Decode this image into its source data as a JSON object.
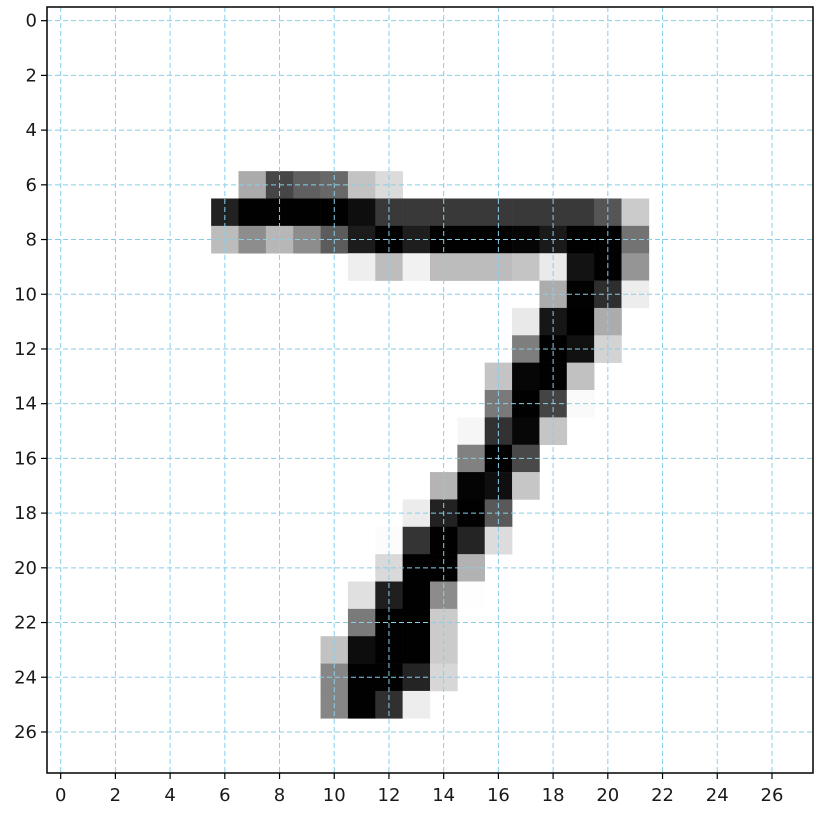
{
  "chart_data": {
    "type": "heatmap",
    "title": "",
    "xlabel": "",
    "ylabel": "",
    "rows": 28,
    "cols": 28,
    "xlim": [
      -0.5,
      27.5
    ],
    "ylim": [
      27.5,
      -0.5
    ],
    "y_inverted": true,
    "colormap": "gray_r",
    "value_range": [
      0,
      255
    ],
    "xticks": [
      0,
      2,
      4,
      6,
      8,
      10,
      12,
      14,
      16,
      18,
      20,
      22,
      24,
      26
    ],
    "yticks": [
      0,
      2,
      4,
      6,
      8,
      10,
      12,
      14,
      16,
      18,
      20,
      22,
      24,
      26
    ],
    "xtick_labels": [
      "0",
      "2",
      "4",
      "6",
      "8",
      "10",
      "12",
      "14",
      "16",
      "18",
      "20",
      "22",
      "24",
      "26"
    ],
    "ytick_labels": [
      "0",
      "2",
      "4",
      "6",
      "8",
      "10",
      "12",
      "14",
      "16",
      "18",
      "20",
      "22",
      "24",
      "26"
    ],
    "grid": {
      "on": true,
      "style": "dashed",
      "color": "#87ceeb",
      "positions": [
        0,
        2,
        4,
        6,
        8,
        10,
        12,
        14,
        16,
        18,
        20,
        22,
        24,
        26
      ]
    },
    "cells": [
      [
        6,
        7,
        84
      ],
      [
        6,
        8,
        185
      ],
      [
        6,
        9,
        159
      ],
      [
        6,
        10,
        151
      ],
      [
        6,
        11,
        60
      ],
      [
        6,
        12,
        36
      ],
      [
        7,
        6,
        222
      ],
      [
        7,
        7,
        254
      ],
      [
        7,
        8,
        254
      ],
      [
        7,
        9,
        254
      ],
      [
        7,
        10,
        254
      ],
      [
        7,
        11,
        241
      ],
      [
        7,
        12,
        198
      ],
      [
        7,
        13,
        198
      ],
      [
        7,
        14,
        198
      ],
      [
        7,
        15,
        198
      ],
      [
        7,
        16,
        198
      ],
      [
        7,
        17,
        198
      ],
      [
        7,
        18,
        198
      ],
      [
        7,
        19,
        198
      ],
      [
        7,
        20,
        170
      ],
      [
        7,
        21,
        52
      ],
      [
        8,
        6,
        67
      ],
      [
        8,
        7,
        114
      ],
      [
        8,
        8,
        72
      ],
      [
        8,
        9,
        114
      ],
      [
        8,
        10,
        163
      ],
      [
        8,
        11,
        227
      ],
      [
        8,
        12,
        254
      ],
      [
        8,
        13,
        225
      ],
      [
        8,
        14,
        254
      ],
      [
        8,
        15,
        254
      ],
      [
        8,
        16,
        254
      ],
      [
        8,
        17,
        250
      ],
      [
        8,
        18,
        229
      ],
      [
        8,
        19,
        254
      ],
      [
        8,
        20,
        254
      ],
      [
        8,
        21,
        140
      ],
      [
        9,
        11,
        17
      ],
      [
        9,
        12,
        66
      ],
      [
        9,
        13,
        14
      ],
      [
        9,
        14,
        67
      ],
      [
        9,
        15,
        67
      ],
      [
        9,
        16,
        67
      ],
      [
        9,
        17,
        59
      ],
      [
        9,
        18,
        21
      ],
      [
        9,
        19,
        236
      ],
      [
        9,
        20,
        254
      ],
      [
        9,
        21,
        106
      ],
      [
        10,
        18,
        83
      ],
      [
        10,
        19,
        253
      ],
      [
        10,
        20,
        209
      ],
      [
        10,
        21,
        18
      ],
      [
        11,
        17,
        22
      ],
      [
        11,
        18,
        233
      ],
      [
        11,
        19,
        255
      ],
      [
        11,
        20,
        83
      ],
      [
        12,
        17,
        129
      ],
      [
        12,
        18,
        254
      ],
      [
        12,
        19,
        238
      ],
      [
        12,
        20,
        44
      ],
      [
        13,
        16,
        59
      ],
      [
        13,
        17,
        249
      ],
      [
        13,
        18,
        254
      ],
      [
        13,
        19,
        62
      ],
      [
        14,
        16,
        133
      ],
      [
        14,
        17,
        254
      ],
      [
        14,
        18,
        187
      ],
      [
        14,
        19,
        5
      ],
      [
        15,
        15,
        9
      ],
      [
        15,
        16,
        205
      ],
      [
        15,
        17,
        248
      ],
      [
        15,
        18,
        58
      ],
      [
        16,
        15,
        126
      ],
      [
        16,
        16,
        254
      ],
      [
        16,
        17,
        182
      ],
      [
        17,
        14,
        75
      ],
      [
        17,
        15,
        251
      ],
      [
        17,
        16,
        240
      ],
      [
        17,
        17,
        57
      ],
      [
        18,
        13,
        19
      ],
      [
        18,
        14,
        221
      ],
      [
        18,
        15,
        254
      ],
      [
        18,
        16,
        166
      ],
      [
        19,
        12,
        3
      ],
      [
        19,
        13,
        203
      ],
      [
        19,
        14,
        254
      ],
      [
        19,
        15,
        219
      ],
      [
        19,
        16,
        35
      ],
      [
        20,
        12,
        38
      ],
      [
        20,
        13,
        254
      ],
      [
        20,
        14,
        254
      ],
      [
        20,
        15,
        77
      ],
      [
        21,
        11,
        31
      ],
      [
        21,
        12,
        224
      ],
      [
        21,
        13,
        254
      ],
      [
        21,
        14,
        115
      ],
      [
        21,
        15,
        1
      ],
      [
        22,
        11,
        133
      ],
      [
        22,
        12,
        254
      ],
      [
        22,
        13,
        254
      ],
      [
        22,
        14,
        52
      ],
      [
        23,
        10,
        61
      ],
      [
        23,
        11,
        242
      ],
      [
        23,
        12,
        254
      ],
      [
        23,
        13,
        254
      ],
      [
        23,
        14,
        52
      ],
      [
        24,
        10,
        121
      ],
      [
        24,
        11,
        254
      ],
      [
        24,
        12,
        254
      ],
      [
        24,
        13,
        219
      ],
      [
        24,
        14,
        40
      ],
      [
        25,
        10,
        121
      ],
      [
        25,
        11,
        254
      ],
      [
        25,
        12,
        207
      ],
      [
        25,
        13,
        18
      ]
    ]
  }
}
